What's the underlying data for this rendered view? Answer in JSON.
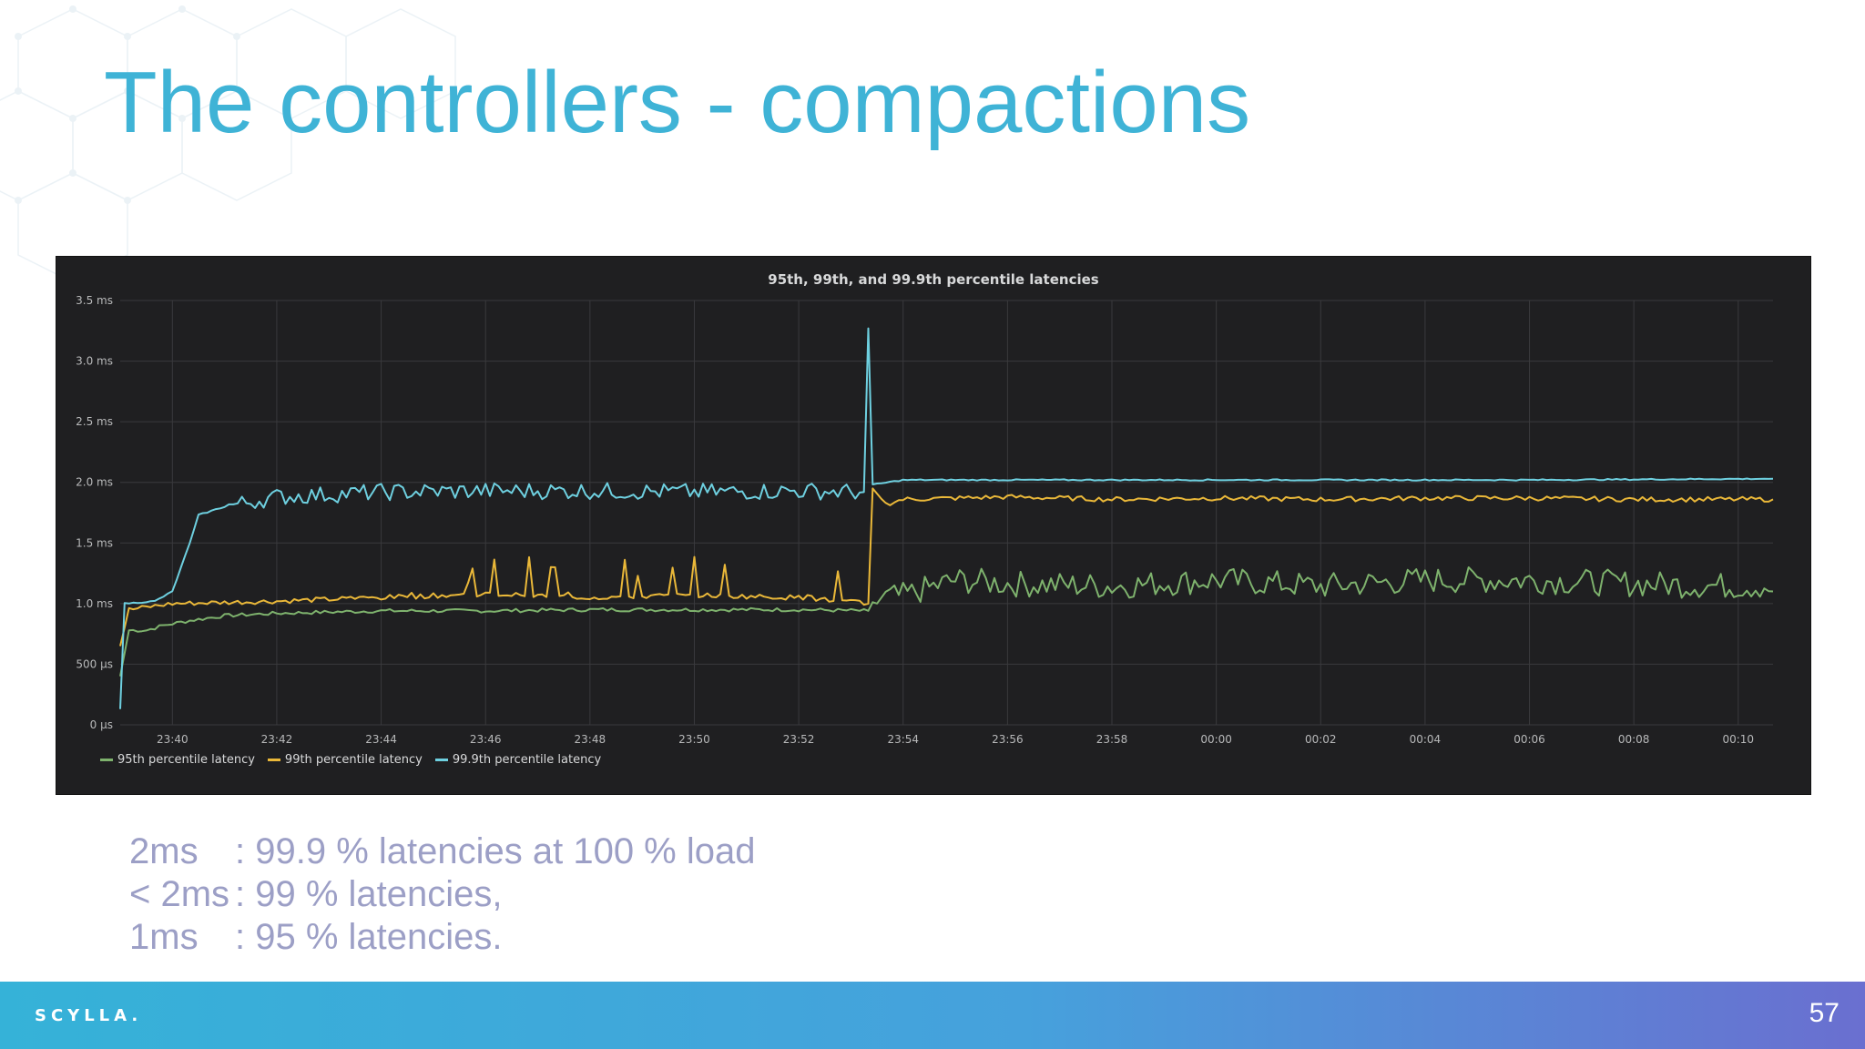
{
  "slide": {
    "title": "The controllers - compactions",
    "page_number": "57",
    "brand": "SCYLLA."
  },
  "notes": [
    {
      "key": "2ms",
      "text": ": 99.9 % latencies at 100 % load"
    },
    {
      "key": "< 2ms",
      "text": ": 99 % latencies,"
    },
    {
      "key": "1ms",
      "text": ": 95 % latencies."
    }
  ],
  "colors": {
    "title": "#3fb3d6",
    "chart_bg": "#1f1f21",
    "p95": "#7eb26d",
    "p99": "#eab839",
    "p999": "#6ed0e0"
  },
  "chart_data": {
    "type": "line",
    "title": "95th, 99th, and 99.9th percentile latencies",
    "x_unit": "time",
    "x_ticks": [
      "23:40",
      "23:42",
      "23:44",
      "23:46",
      "23:48",
      "23:50",
      "23:52",
      "23:54",
      "23:56",
      "23:58",
      "00:00",
      "00:02",
      "00:04",
      "00:06",
      "00:08",
      "00:10"
    ],
    "x_range_minutes": [
      "23:39",
      "00:10:40"
    ],
    "y_ticks": [
      "0 µs",
      "500 µs",
      "1.0 ms",
      "1.5 ms",
      "2.0 ms",
      "2.5 ms",
      "3.0 ms",
      "3.5 ms"
    ],
    "ylim_ms": [
      0,
      3.5
    ],
    "grid": true,
    "legend_position": "bottom-left",
    "series": [
      {
        "name": "95th percentile latency",
        "color": "#7eb26d",
        "points": [
          [
            "23:39",
            0.4
          ],
          [
            "23:39:10",
            0.78
          ],
          [
            "23:39:30",
            0.78
          ],
          [
            "23:39:50",
            0.82
          ],
          [
            "23:40:20",
            0.86
          ],
          [
            "23:41",
            0.9
          ],
          [
            "23:42",
            0.92
          ],
          [
            "23:44",
            0.94
          ],
          [
            "23:46",
            0.94
          ],
          [
            "23:48",
            0.95
          ],
          [
            "23:50",
            0.95
          ],
          [
            "23:52",
            0.95
          ],
          [
            "23:53:20",
            0.94
          ],
          [
            "23:53:25",
            1.0
          ],
          [
            "23:54",
            1.02
          ],
          [
            "23:55",
            1.15
          ],
          [
            "23:56",
            1.12
          ],
          [
            "23:58",
            1.1
          ],
          [
            "00:00",
            1.15
          ],
          [
            "00:02",
            1.1
          ],
          [
            "00:04",
            1.15
          ],
          [
            "00:06",
            1.15
          ],
          [
            "00:08",
            1.12
          ],
          [
            "00:10",
            1.1
          ],
          [
            "00:10:40",
            1.1
          ]
        ]
      },
      {
        "name": "99th percentile latency",
        "color": "#eab839",
        "points": [
          [
            "23:39",
            0.65
          ],
          [
            "23:39:10",
            0.95
          ],
          [
            "23:40",
            1.0
          ],
          [
            "23:42",
            1.02
          ],
          [
            "23:44",
            1.05
          ],
          [
            "23:46",
            1.08
          ],
          [
            "23:48",
            1.05
          ],
          [
            "23:50",
            1.07
          ],
          [
            "23:52",
            1.05
          ],
          [
            "23:53:20",
            1.0
          ],
          [
            "23:53:25",
            1.95
          ],
          [
            "23:53:40",
            1.82
          ],
          [
            "23:54",
            1.86
          ],
          [
            "23:56",
            1.88
          ],
          [
            "23:58",
            1.86
          ],
          [
            "00:00",
            1.87
          ],
          [
            "00:02",
            1.86
          ],
          [
            "00:04",
            1.87
          ],
          [
            "00:06",
            1.87
          ],
          [
            "00:08",
            1.86
          ],
          [
            "00:10",
            1.86
          ],
          [
            "00:10:40",
            1.86
          ]
        ]
      },
      {
        "name": "99.9th percentile latency",
        "color": "#6ed0e0",
        "points": [
          [
            "23:39",
            0.13
          ],
          [
            "23:39:05",
            1.0
          ],
          [
            "23:39:40",
            1.02
          ],
          [
            "23:40",
            1.1
          ],
          [
            "23:40:20",
            1.5
          ],
          [
            "23:40:30",
            1.73
          ],
          [
            "23:41",
            1.8
          ],
          [
            "23:42",
            1.88
          ],
          [
            "23:44",
            1.92
          ],
          [
            "23:46",
            1.93
          ],
          [
            "23:48",
            1.93
          ],
          [
            "23:50",
            1.92
          ],
          [
            "23:52",
            1.93
          ],
          [
            "23:53:15",
            1.92
          ],
          [
            "23:53:20",
            3.27
          ],
          [
            "23:53:25",
            1.98
          ],
          [
            "23:54",
            2.02
          ],
          [
            "23:58",
            2.02
          ],
          [
            "00:02",
            2.02
          ],
          [
            "00:06",
            2.02
          ],
          [
            "00:10:40",
            2.03
          ]
        ]
      }
    ]
  }
}
